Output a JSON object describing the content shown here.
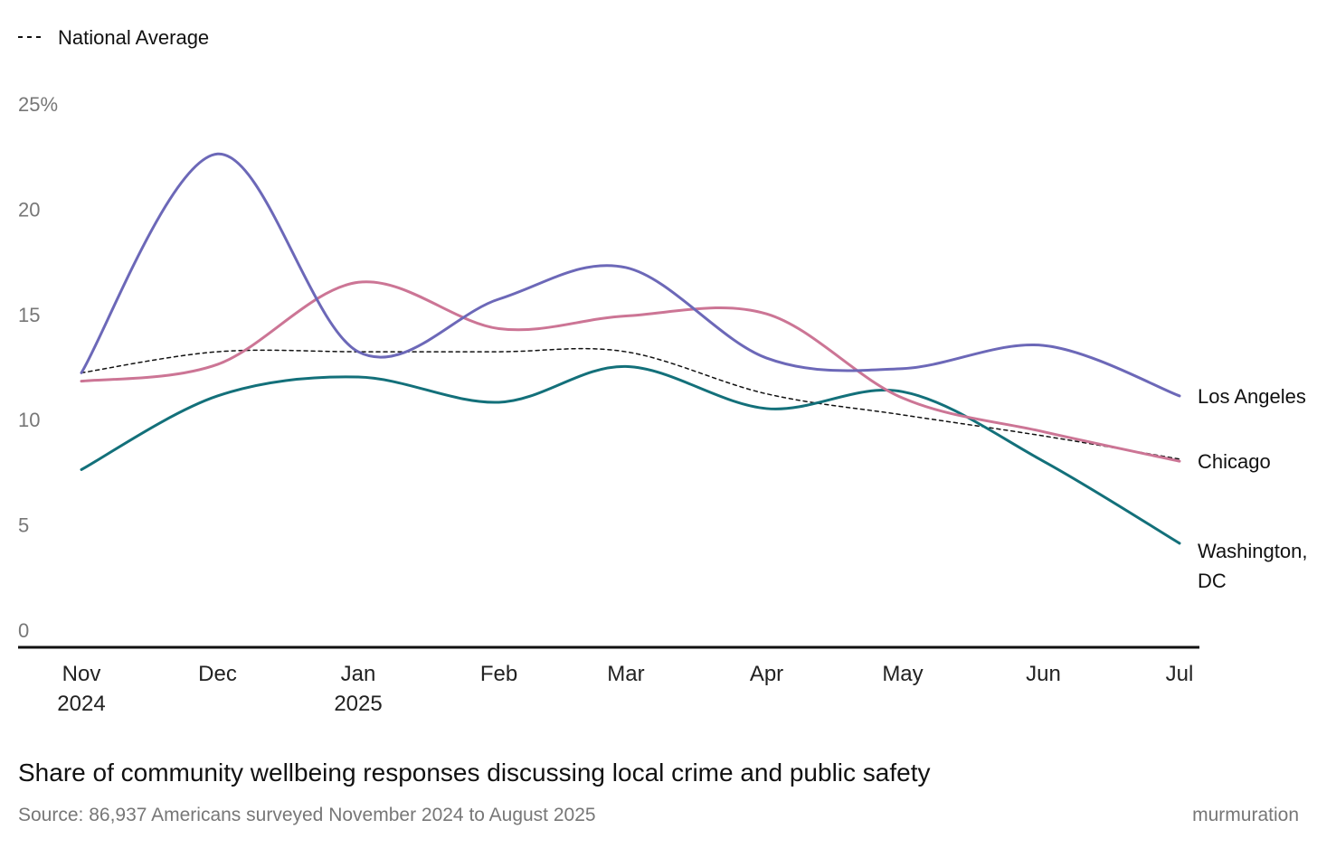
{
  "chart_data": {
    "type": "line",
    "title": "Share of community wellbeing responses discussing local crime and public safety",
    "source": "Source: 86,937 Americans surveyed November 2024 to August 2025",
    "brand": "murmuration",
    "legend": {
      "label": "National Average",
      "placement": "top-left",
      "style": "dashed"
    },
    "xlabel": "",
    "ylabel": "",
    "ylim": [
      0,
      25
    ],
    "y_ticks": [
      "0",
      "5",
      "10",
      "15",
      "20",
      "25%"
    ],
    "y_tick_values": [
      0,
      5,
      10,
      15,
      20,
      25
    ],
    "x": [
      "2024-11",
      "2024-12",
      "2025-01",
      "2025-02",
      "2025-03",
      "2025-04",
      "2025-05",
      "2025-06",
      "2025-07"
    ],
    "x_day_offsets": [
      0,
      30,
      61,
      92,
      120,
      151,
      181,
      212,
      242
    ],
    "x_tick_labels": [
      {
        "month": "Nov",
        "year": "2024"
      },
      {
        "month": "Dec",
        "year": ""
      },
      {
        "month": "Jan",
        "year": "2025"
      },
      {
        "month": "Feb",
        "year": ""
      },
      {
        "month": "Mar",
        "year": ""
      },
      {
        "month": "Apr",
        "year": ""
      },
      {
        "month": "May",
        "year": ""
      },
      {
        "month": "Jun",
        "year": ""
      },
      {
        "month": "Jul",
        "year": ""
      }
    ],
    "series": [
      {
        "name": "Los Angeles",
        "label_lines": [
          "Los Angeles"
        ],
        "color": "#6c68b8",
        "values": [
          13.0,
          23.4,
          14.0,
          16.5,
          18.0,
          13.7,
          13.2,
          14.3,
          11.9
        ]
      },
      {
        "name": "Chicago",
        "label_lines": [
          "Chicago"
        ],
        "color": "#cc7595",
        "values": [
          12.6,
          13.4,
          17.3,
          15.1,
          15.7,
          15.8,
          11.8,
          10.2,
          8.8
        ]
      },
      {
        "name": "Washington, DC",
        "label_lines": [
          "Washington,",
          "DC"
        ],
        "color": "#13707a",
        "values": [
          8.4,
          11.9,
          12.8,
          11.6,
          13.3,
          11.3,
          12.1,
          8.8,
          4.9
        ]
      },
      {
        "name": "National Average",
        "color": "#111111",
        "dashed": true,
        "values": [
          13.0,
          14.0,
          14.0,
          14.0,
          14.0,
          12.0,
          11.0,
          10.0,
          8.9
        ]
      }
    ]
  }
}
